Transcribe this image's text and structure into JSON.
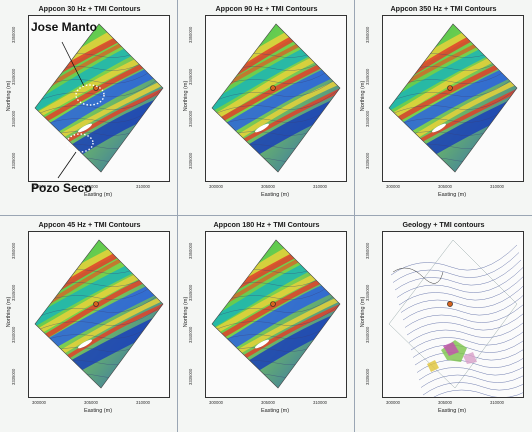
{
  "panels": [
    {
      "title": "Appcon 30 Hz + TMI Contours",
      "kind": "em"
    },
    {
      "title": "Appcon 90 Hz + TMI Contours",
      "kind": "em"
    },
    {
      "title": "Appcon 350 Hz + TMI Contours",
      "kind": "em"
    },
    {
      "title": "Appcon 45 Hz + TMI Contours",
      "kind": "em"
    },
    {
      "title": "Appcon 180 Hz + TMI Contours",
      "kind": "em"
    },
    {
      "title": "Geology + TMI contours",
      "kind": "geo"
    }
  ],
  "axis": {
    "xlabel": "Easting (m)",
    "ylabel": "Northing (m)",
    "xticks": [
      "300000",
      "305000",
      "310000"
    ],
    "yticks": [
      "3350000",
      "3345000",
      "3340000",
      "3335000"
    ]
  },
  "annotations": {
    "label_1": "Jose Manto",
    "label_2": "Pozo Seco"
  },
  "colors": {
    "low": "#1f4fd1",
    "mid": "#2fbf5a",
    "high": "#e0402a",
    "contour": "#3a3f7a"
  }
}
